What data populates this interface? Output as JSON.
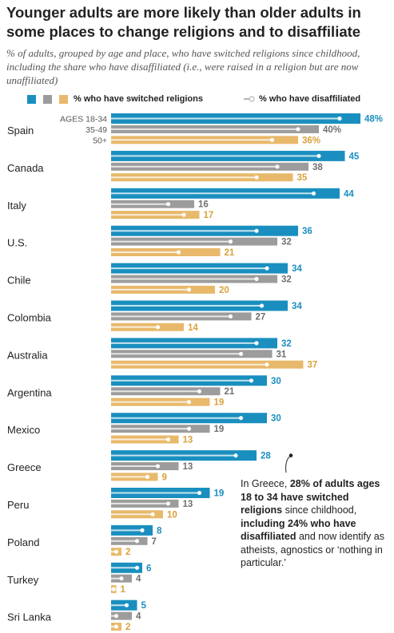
{
  "title": "Younger adults are more likely than older adults in some places to change religions and to disaffiliate",
  "subtitle": "% of adults, grouped by age and place, who have switched religions since childhood, including the share who have disaffiliated (i.e., were raised in a religion but are now unaffiliated)",
  "legend": {
    "switched": "% who have switched religions",
    "disaffiliated": "% who have disaffiliated"
  },
  "age_groups": [
    "AGES 18-34",
    "35-49",
    "50+"
  ],
  "colors": {
    "young": "#1a8fbf",
    "middle": "#9c9c9c",
    "old": "#e8b96b",
    "young_label": "#1a8fbf",
    "middle_label": "#6f6f6f",
    "old_label": "#d9a13a",
    "disaffiliated_marker": "#ffffff"
  },
  "chart_data": {
    "type": "bar",
    "orientation": "horizontal",
    "categories": [
      "Spain",
      "Canada",
      "Italy",
      "U.S.",
      "Chile",
      "Colombia",
      "Australia",
      "Argentina",
      "Mexico",
      "Greece",
      "Peru",
      "Poland",
      "Turkey",
      "Sri Lanka"
    ],
    "series": [
      {
        "name": "AGES 18-34",
        "switched": [
          48,
          45,
          44,
          36,
          34,
          34,
          32,
          30,
          30,
          28,
          19,
          8,
          6,
          5
        ],
        "disaffiliated": [
          44,
          40,
          39,
          28,
          30,
          29,
          28,
          27,
          25,
          24,
          17,
          6,
          5,
          3
        ]
      },
      {
        "name": "35-49",
        "switched": [
          40,
          38,
          16,
          32,
          32,
          27,
          31,
          21,
          19,
          13,
          13,
          7,
          4,
          4
        ],
        "disaffiliated": [
          36,
          32,
          11,
          23,
          28,
          23,
          25,
          17,
          15,
          9,
          11,
          5,
          2,
          1
        ]
      },
      {
        "name": "50+",
        "switched": [
          36,
          35,
          17,
          21,
          20,
          14,
          37,
          19,
          13,
          9,
          10,
          2,
          1,
          2
        ],
        "disaffiliated": [
          31,
          28,
          14,
          13,
          15,
          9,
          30,
          15,
          11,
          7,
          8,
          1,
          0.5,
          1
        ]
      }
    ],
    "value_labels": [
      [
        "48%",
        "40%",
        "36%"
      ],
      [
        "45",
        "38",
        "35"
      ],
      [
        "44",
        "16",
        "17"
      ],
      [
        "36",
        "32",
        "21"
      ],
      [
        "34",
        "32",
        "20"
      ],
      [
        "34",
        "27",
        "14"
      ],
      [
        "32",
        "31",
        "37"
      ],
      [
        "30",
        "21",
        "19"
      ],
      [
        "30",
        "19",
        "13"
      ],
      [
        "28",
        "13",
        "9"
      ],
      [
        "19",
        "13",
        "10"
      ],
      [
        "8",
        "7",
        "2"
      ],
      [
        "6",
        "4",
        "1"
      ],
      [
        "5",
        "4",
        "2"
      ]
    ],
    "xlim": [
      0,
      48
    ]
  },
  "callout": {
    "country": "Greece",
    "segments": [
      {
        "text": "In Greece, ",
        "bold": false
      },
      {
        "text": "28% of adults ages 18 to 34 have switched religions",
        "bold": true
      },
      {
        "text": " since childhood, ",
        "bold": false
      },
      {
        "text": "including 24% who have disaffiliated",
        "bold": true
      },
      {
        "text": " and now identify as atheists, agnostics or ‘nothing in particular.’",
        "bold": false
      }
    ]
  }
}
